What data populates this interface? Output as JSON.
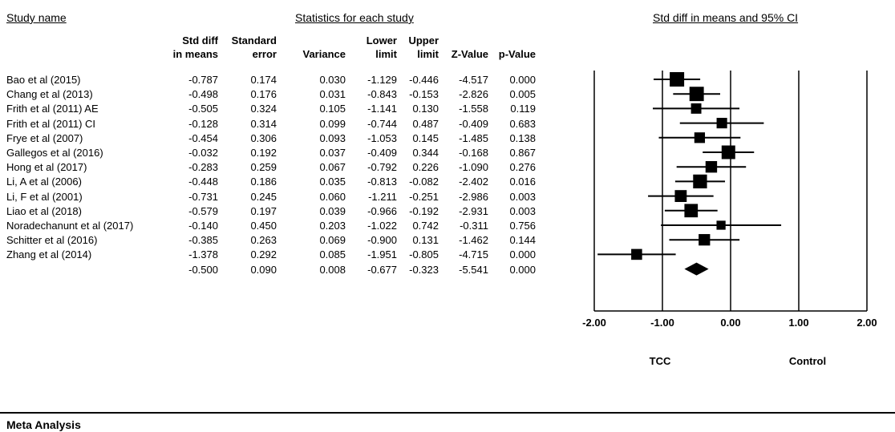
{
  "headers": {
    "study_name": "Study name",
    "statistics": "Statistics for each study",
    "plot": "Std diff in means and 95% CI"
  },
  "columns": [
    {
      "line1": "Std diff",
      "line2": "in means"
    },
    {
      "line1": "Standard",
      "line2": "error"
    },
    {
      "line1": "",
      "line2": "Variance"
    },
    {
      "line1": "Lower",
      "line2": "limit"
    },
    {
      "line1": "Upper",
      "line2": "limit"
    },
    {
      "line1": "",
      "line2": "Z-Value"
    },
    {
      "line1": "",
      "line2": "p-Value"
    }
  ],
  "rows": [
    {
      "name": "Bao et al (2015)",
      "cells": [
        "-0.787",
        "0.174",
        "0.030",
        "-1.129",
        "-0.446",
        "-4.517",
        "0.000"
      ]
    },
    {
      "name": "Chang et al (2013)",
      "cells": [
        "-0.498",
        "0.176",
        "0.031",
        "-0.843",
        "-0.153",
        "-2.826",
        "0.005"
      ]
    },
    {
      "name": "Frith et al (2011) AE",
      "cells": [
        "-0.505",
        "0.324",
        "0.105",
        "-1.141",
        "0.130",
        "-1.558",
        "0.119"
      ]
    },
    {
      "name": "Frith et al (2011) CI",
      "cells": [
        "-0.128",
        "0.314",
        "0.099",
        "-0.744",
        "0.487",
        "-0.409",
        "0.683"
      ]
    },
    {
      "name": "Frye et al (2007)",
      "cells": [
        "-0.454",
        "0.306",
        "0.093",
        "-1.053",
        "0.145",
        "-1.485",
        "0.138"
      ]
    },
    {
      "name": "Gallegos et al (2016)",
      "cells": [
        "-0.032",
        "0.192",
        "0.037",
        "-0.409",
        "0.344",
        "-0.168",
        "0.867"
      ]
    },
    {
      "name": "Hong et al (2017)",
      "cells": [
        "-0.283",
        "0.259",
        "0.067",
        "-0.792",
        "0.226",
        "-1.090",
        "0.276"
      ]
    },
    {
      "name": "Li, A et al (2006)",
      "cells": [
        "-0.448",
        "0.186",
        "0.035",
        "-0.813",
        "-0.082",
        "-2.402",
        "0.016"
      ]
    },
    {
      "name": "Li, F et al (2001)",
      "cells": [
        "-0.731",
        "0.245",
        "0.060",
        "-1.211",
        "-0.251",
        "-2.986",
        "0.003"
      ]
    },
    {
      "name": "Liao et al (2018)",
      "cells": [
        "-0.579",
        "0.197",
        "0.039",
        "-0.966",
        "-0.192",
        "-2.931",
        "0.003"
      ]
    },
    {
      "name": "Noradechanunt et al  (2017)",
      "cells": [
        "-0.140",
        "0.450",
        "0.203",
        "-1.022",
        "0.742",
        "-0.311",
        "0.756"
      ]
    },
    {
      "name": "Schitter et al (2016)",
      "cells": [
        "-0.385",
        "0.263",
        "0.069",
        "-0.900",
        "0.131",
        "-1.462",
        "0.144"
      ]
    },
    {
      "name": "Zhang et al (2014)",
      "cells": [
        "-1.378",
        "0.292",
        "0.085",
        "-1.951",
        "-0.805",
        "-4.715",
        "0.000"
      ]
    },
    {
      "name": "",
      "cells": [
        "-0.500",
        "0.090",
        "0.008",
        "-0.677",
        "-0.323",
        "-5.541",
        "0.000"
      ]
    }
  ],
  "chart_data": {
    "type": "forest",
    "x_label_ticks": [
      "-2.00",
      "-1.00",
      "0.00",
      "1.00",
      "2.00"
    ],
    "xlim": [
      -2,
      2
    ],
    "favours_left": "TCC",
    "favours_right": "Control",
    "studies": [
      {
        "effect": -0.787,
        "lower": -1.129,
        "upper": -0.446,
        "weight": 0.174
      },
      {
        "effect": -0.498,
        "lower": -0.843,
        "upper": -0.153,
        "weight": 0.176
      },
      {
        "effect": -0.505,
        "lower": -1.141,
        "upper": 0.13,
        "weight": 0.324
      },
      {
        "effect": -0.128,
        "lower": -0.744,
        "upper": 0.487,
        "weight": 0.314
      },
      {
        "effect": -0.454,
        "lower": -1.053,
        "upper": 0.145,
        "weight": 0.306
      },
      {
        "effect": -0.032,
        "lower": -0.409,
        "upper": 0.344,
        "weight": 0.192
      },
      {
        "effect": -0.283,
        "lower": -0.792,
        "upper": 0.226,
        "weight": 0.259
      },
      {
        "effect": -0.448,
        "lower": -0.813,
        "upper": -0.082,
        "weight": 0.186
      },
      {
        "effect": -0.731,
        "lower": -1.211,
        "upper": -0.251,
        "weight": 0.245
      },
      {
        "effect": -0.579,
        "lower": -0.966,
        "upper": -0.192,
        "weight": 0.197
      },
      {
        "effect": -0.14,
        "lower": -1.022,
        "upper": 0.742,
        "weight": 0.45
      },
      {
        "effect": -0.385,
        "lower": -0.9,
        "upper": 0.131,
        "weight": 0.263
      },
      {
        "effect": -1.378,
        "lower": -1.951,
        "upper": -0.805,
        "weight": 0.292
      }
    ],
    "summary": {
      "effect": -0.5,
      "lower": -0.677,
      "upper": -0.323
    }
  },
  "footer": {
    "title": "Meta Analysis"
  }
}
